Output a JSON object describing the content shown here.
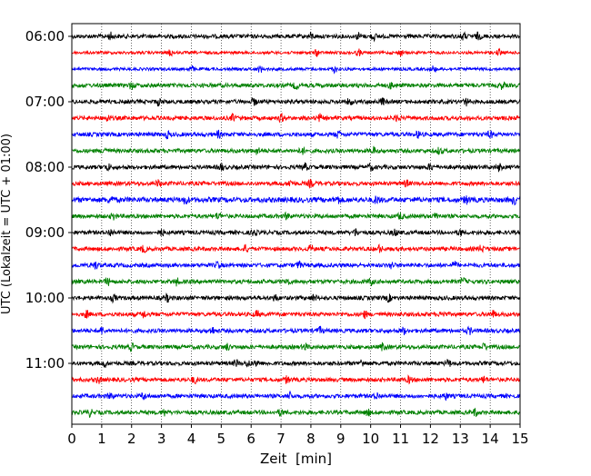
{
  "chart_data": {
    "type": "line",
    "title": "",
    "xlabel": "Zeit  [min]",
    "ylabel": "UTC (Lokalzeit = UTC + 01:00)",
    "xlim": [
      0,
      15
    ],
    "x_ticks": [
      "0",
      "1",
      "2",
      "3",
      "4",
      "5",
      "6",
      "7",
      "8",
      "9",
      "10",
      "11",
      "12",
      "13",
      "14",
      "15"
    ],
    "y_tick_labels": [
      "06:00",
      "07:00",
      "08:00",
      "09:00",
      "10:00",
      "11:00"
    ],
    "grid": "vertical dotted lines at every minute",
    "legend": "none",
    "trace_interval_minutes": 15,
    "traces": [
      {
        "start": "06:00",
        "color": "#000000",
        "amplitude": "medium",
        "events_min": [
          1.3,
          8.0,
          9.6,
          10.1,
          13.1,
          13.6
        ]
      },
      {
        "start": "06:15",
        "color": "#ff0000",
        "amplitude": "low",
        "events_min": [
          3.3,
          8.2,
          9.6,
          11.0,
          14.3
        ]
      },
      {
        "start": "06:30",
        "color": "#0000ff",
        "amplitude": "low",
        "events_min": [
          4.0,
          6.3,
          8.8,
          12.1
        ]
      },
      {
        "start": "06:45",
        "color": "#008000",
        "amplitude": "medium",
        "events_min": [
          2.0,
          7.5,
          10.7,
          14.4
        ]
      },
      {
        "start": "07:00",
        "color": "#000000",
        "amplitude": "medium",
        "events_min": [
          2.9,
          6.1,
          9.3,
          10.4,
          13.2
        ]
      },
      {
        "start": "07:15",
        "color": "#ff0000",
        "amplitude": "medium",
        "events_min": [
          1.2,
          5.4,
          7.0,
          8.3,
          10.9
        ]
      },
      {
        "start": "07:30",
        "color": "#0000ff",
        "amplitude": "medium",
        "events_min": [
          3.2,
          4.9,
          8.9,
          11.6,
          14.0
        ]
      },
      {
        "start": "07:45",
        "color": "#008000",
        "amplitude": "medium",
        "events_min": [
          1.1,
          6.2,
          7.7,
          10.1,
          12.3
        ]
      },
      {
        "start": "08:00",
        "color": "#000000",
        "amplitude": "medium",
        "events_min": [
          1.2,
          5.0,
          7.8,
          10.0,
          12.0,
          14.3
        ]
      },
      {
        "start": "08:15",
        "color": "#ff0000",
        "amplitude": "medium",
        "events_min": [
          2.9,
          7.3,
          8.0,
          11.2
        ]
      },
      {
        "start": "08:30",
        "color": "#0000ff",
        "amplitude": "high",
        "events_min": [
          1.3,
          3.8,
          8.9,
          10.2,
          13.2,
          14.8
        ]
      },
      {
        "start": "08:45",
        "color": "#008000",
        "amplitude": "medium",
        "events_min": [
          1.4,
          4.9,
          7.2,
          11.0,
          12.2
        ]
      },
      {
        "start": "09:00",
        "color": "#000000",
        "amplitude": "medium",
        "events_min": [
          1.3,
          3.0,
          6.1,
          9.5,
          10.8,
          13.0
        ]
      },
      {
        "start": "09:15",
        "color": "#ff0000",
        "amplitude": "medium",
        "events_min": [
          2.4,
          5.8,
          8.0,
          10.3,
          13.7
        ]
      },
      {
        "start": "09:30",
        "color": "#0000ff",
        "amplitude": "medium",
        "events_min": [
          0.8,
          4.9,
          7.6,
          10.7,
          12.8
        ]
      },
      {
        "start": "09:45",
        "color": "#008000",
        "amplitude": "medium",
        "events_min": [
          1.2,
          3.5,
          7.2,
          10.0,
          13.1
        ]
      },
      {
        "start": "10:00",
        "color": "#000000",
        "amplitude": "medium",
        "events_min": [
          1.4,
          3.2,
          6.8,
          8.1,
          10.6
        ]
      },
      {
        "start": "10:15",
        "color": "#ff0000",
        "amplitude": "medium",
        "events_min": [
          0.5,
          2.4,
          6.2,
          9.8,
          12.4,
          14.1
        ]
      },
      {
        "start": "10:30",
        "color": "#0000ff",
        "amplitude": "medium",
        "events_min": [
          1.0,
          4.7,
          8.3,
          11.1,
          13.3
        ]
      },
      {
        "start": "10:45",
        "color": "#008000",
        "amplitude": "medium",
        "events_min": [
          2.0,
          5.2,
          7.8,
          10.4,
          13.8
        ]
      },
      {
        "start": "11:00",
        "color": "#000000",
        "amplitude": "medium",
        "events_min": [
          1.1,
          5.5,
          5.9,
          6.2,
          9.7,
          12.6
        ]
      },
      {
        "start": "11:15",
        "color": "#ff0000",
        "amplitude": "medium",
        "events_min": [
          0.9,
          4.1,
          7.2,
          11.3,
          13.8
        ]
      },
      {
        "start": "11:30",
        "color": "#0000ff",
        "amplitude": "medium",
        "events_min": [
          1.3,
          2.4,
          7.3,
          10.2,
          12.5
        ]
      },
      {
        "start": "11:45",
        "color": "#008000",
        "amplitude": "medium",
        "events_min": [
          0.6,
          3.1,
          7.0,
          9.9,
          13.5
        ]
      }
    ]
  }
}
